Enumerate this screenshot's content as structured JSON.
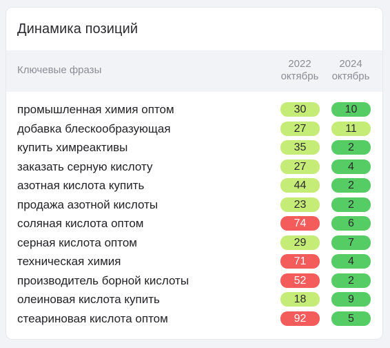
{
  "widget": {
    "title": "Динамика позиций",
    "header": {
      "phrase_label": "Ключевые фразы",
      "col1_year": "2022",
      "col1_month": "октябрь",
      "col2_year": "2024",
      "col2_month": "октябрь"
    },
    "colors": {
      "red": "#f45b5b",
      "lime": "#c6ec78",
      "green": "#56cc64"
    },
    "rows": [
      {
        "phrase": "промышленная химия оптом",
        "pos_2022": "30",
        "color_2022": "lime",
        "pos_2024": "10",
        "color_2024": "green"
      },
      {
        "phrase": "добавка блескообразующая",
        "pos_2022": "27",
        "color_2022": "lime",
        "pos_2024": "11",
        "color_2024": "lime"
      },
      {
        "phrase": "купить химреактивы",
        "pos_2022": "35",
        "color_2022": "lime",
        "pos_2024": "2",
        "color_2024": "green"
      },
      {
        "phrase": "заказать серную кислоту",
        "pos_2022": "27",
        "color_2022": "lime",
        "pos_2024": "4",
        "color_2024": "green"
      },
      {
        "phrase": "азотная кислота купить",
        "pos_2022": "44",
        "color_2022": "lime",
        "pos_2024": "2",
        "color_2024": "green"
      },
      {
        "phrase": "продажа азотной кислоты",
        "pos_2022": "23",
        "color_2022": "lime",
        "pos_2024": "2",
        "color_2024": "green"
      },
      {
        "phrase": "соляная кислота оптом",
        "pos_2022": "74",
        "color_2022": "red",
        "pos_2024": "6",
        "color_2024": "green"
      },
      {
        "phrase": "серная кислота оптом",
        "pos_2022": "29",
        "color_2022": "lime",
        "pos_2024": "7",
        "color_2024": "green"
      },
      {
        "phrase": "техническая химия",
        "pos_2022": "71",
        "color_2022": "red",
        "pos_2024": "4",
        "color_2024": "green"
      },
      {
        "phrase": "производитель борной кислоты",
        "pos_2022": "52",
        "color_2022": "red",
        "pos_2024": "2",
        "color_2024": "green"
      },
      {
        "phrase": "олеиновая кислота купить",
        "pos_2022": "18",
        "color_2022": "lime",
        "pos_2024": "9",
        "color_2024": "green"
      },
      {
        "phrase": "стеариновая кислота оптом",
        "pos_2022": "92",
        "color_2022": "red",
        "pos_2024": "5",
        "color_2024": "green"
      }
    ]
  }
}
